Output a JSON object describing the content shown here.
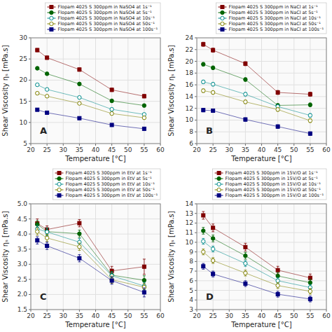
{
  "chart_data": [
    {
      "type": "line",
      "xlabel": "Temperature [°C]",
      "ylabel": "Shear Viscosity ηₛ [mPa.s]",
      "annotations": [
        "A"
      ],
      "x": [
        22,
        25,
        35,
        45,
        55
      ],
      "xlim": [
        20,
        60
      ],
      "xticks": [
        20,
        25,
        30,
        35,
        40,
        45,
        50,
        55,
        60
      ],
      "ylim": [
        5,
        30
      ],
      "yticks": [
        5,
        10,
        15,
        20,
        25,
        30
      ],
      "grid": true,
      "legend": "top",
      "series": [
        {
          "name": "Flopam 4025 S 300ppm in NaSO4 at 1s⁻¹",
          "color": "#800000",
          "marker": "square",
          "values": [
            27.1,
            25.3,
            22.5,
            17.7,
            16.2
          ],
          "errors": [
            0.4,
            0.4,
            0.4,
            0.4,
            0.4
          ]
        },
        {
          "name": "Flopam 4025 S 300ppm in NaSO4 at 5s⁻¹",
          "color": "#006400",
          "marker": "circle",
          "values": [
            22.8,
            21.5,
            19.1,
            15.1,
            14.0
          ],
          "errors": [
            0.35,
            0.35,
            0.35,
            0.35,
            0.35
          ]
        },
        {
          "name": "Flopam 4025 S 300ppm in NaSO4 at 10s⁻¹",
          "color": "#008B8B",
          "marker": "open-circle",
          "values": [
            18.9,
            17.8,
            15.9,
            13.1,
            11.9
          ],
          "errors": [
            0.3,
            0.3,
            0.3,
            0.3,
            0.3
          ]
        },
        {
          "name": "Flopam 4025 S 300ppm in NaSO4 at 50s⁻¹",
          "color": "#808000",
          "marker": "open-circle",
          "values": [
            16.9,
            16.2,
            14.5,
            12.1,
            11.1
          ],
          "errors": [
            0.3,
            0.3,
            0.3,
            0.3,
            0.3
          ]
        },
        {
          "name": "Flopam 4025 S 300ppm in NaSO4 at 100s⁻¹",
          "color": "#000080",
          "marker": "square",
          "values": [
            13.0,
            12.3,
            11.0,
            9.4,
            8.5
          ],
          "errors": [
            0.3,
            0.3,
            0.3,
            0.3,
            0.3
          ]
        }
      ]
    },
    {
      "type": "line",
      "xlabel": "Temperature [°C]",
      "ylabel": "Shear Viscosity ηₛ [mPa.s]",
      "annotations": [
        "B"
      ],
      "x": [
        22,
        25,
        35,
        45,
        55
      ],
      "xlim": [
        20,
        60
      ],
      "xticks": [
        20,
        25,
        30,
        35,
        40,
        45,
        50,
        55,
        60
      ],
      "ylim": [
        6,
        24
      ],
      "yticks": [
        6,
        8,
        10,
        12,
        14,
        16,
        18,
        20,
        22,
        24
      ],
      "grid": true,
      "legend": "top",
      "series": [
        {
          "name": "Flopam 4025 S 300ppm in NaCl at 1s⁻¹",
          "color": "#800000",
          "marker": "square",
          "values": [
            22.9,
            21.9,
            19.6,
            14.7,
            14.4
          ],
          "errors": [
            0.35,
            0.35,
            0.35,
            0.35,
            0.35
          ]
        },
        {
          "name": "Flopam 4025 S 300ppm in NaCl at 5s⁻¹",
          "color": "#006400",
          "marker": "circle",
          "values": [
            19.5,
            18.9,
            16.9,
            12.5,
            12.6
          ],
          "errors": [
            0.3,
            0.3,
            0.3,
            0.3,
            0.3
          ]
        },
        {
          "name": "Flopam 4025 S 300ppm in NaCl at 10s⁻¹",
          "color": "#008B8B",
          "marker": "open-circle",
          "values": [
            16.5,
            16.1,
            14.4,
            12.3,
            10.8
          ],
          "errors": [
            0.3,
            0.3,
            0.3,
            0.3,
            0.3
          ]
        },
        {
          "name": "Flopam 4025 S 300ppm in NaCl at 50s⁻¹",
          "color": "#808000",
          "marker": "open-circle",
          "values": [
            15.0,
            14.7,
            13.1,
            11.8,
            9.9
          ],
          "errors": [
            0.3,
            0.3,
            0.3,
            0.3,
            0.3
          ]
        },
        {
          "name": "Flopam 4025 S 300ppm in NaCl at 100s⁻¹",
          "color": "#000080",
          "marker": "square",
          "values": [
            11.7,
            11.6,
            10.1,
            8.9,
            7.7
          ],
          "errors": [
            0.3,
            0.3,
            0.3,
            0.3,
            0.3
          ]
        }
      ]
    },
    {
      "type": "line",
      "xlabel": "Temperature [°C]",
      "ylabel": "Shear Viscosity ηₛ [mPa.s]",
      "annotations": [
        "C"
      ],
      "x": [
        22,
        25,
        35,
        45,
        55
      ],
      "xlim": [
        20,
        60
      ],
      "xticks": [
        20,
        25,
        30,
        35,
        40,
        45,
        50,
        55,
        60
      ],
      "ylim": [
        1.5,
        5.0
      ],
      "yticks": [
        1.5,
        {
          "value": 2.0,
          "label": "2.0"
        },
        2.5,
        {
          "value": 3.0,
          "label": "3.0"
        },
        3.5,
        {
          "value": 4.0,
          "label": "4.0"
        },
        4.5,
        {
          "value": 5.0,
          "label": "5.0"
        }
      ],
      "grid": true,
      "legend": "top",
      "series": [
        {
          "name": "Flopam 4025 S 300ppm in EtV at 1s⁻¹",
          "color": "#800000",
          "marker": "square",
          "values": [
            4.35,
            4.15,
            4.36,
            2.78,
            2.92
          ],
          "errors": [
            0.15,
            0.12,
            0.12,
            0.15,
            0.25
          ]
        },
        {
          "name": "Flopam 4025 S 300ppm in EtV at 5s⁻¹",
          "color": "#006400",
          "marker": "circle",
          "values": [
            4.32,
            4.08,
            4.01,
            2.64,
            2.47
          ],
          "errors": [
            0.12,
            0.12,
            0.12,
            0.12,
            0.15
          ]
        },
        {
          "name": "Flopam 4025 S 300ppm in EtV at 10s⁻¹",
          "color": "#008B8B",
          "marker": "open-circle",
          "values": [
            4.17,
            4.07,
            3.73,
            2.62,
            2.28
          ],
          "errors": [
            0.12,
            0.12,
            0.12,
            0.12,
            0.12
          ]
        },
        {
          "name": "Flopam 4025 S 300ppm in EtV at 50s⁻¹",
          "color": "#808000",
          "marker": "open-circle",
          "values": [
            4.08,
            3.87,
            3.58,
            2.49,
            2.24
          ],
          "errors": [
            0.12,
            0.12,
            0.12,
            0.12,
            0.12
          ]
        },
        {
          "name": "Flopam 4025 S 300ppm in EtV at 100s⁻¹",
          "color": "#000080",
          "marker": "square",
          "values": [
            3.79,
            3.61,
            3.2,
            2.46,
            2.07
          ],
          "errors": [
            0.12,
            0.12,
            0.12,
            0.12,
            0.15
          ]
        }
      ]
    },
    {
      "type": "line",
      "xlabel": "Temperature [°C]",
      "ylabel": "Shear Viscosity ηₛ [mPa.s]",
      "annotations": [
        "D"
      ],
      "x": [
        22,
        25,
        35,
        45,
        55
      ],
      "xlim": [
        20,
        60
      ],
      "xticks": [
        20,
        25,
        30,
        35,
        40,
        45,
        50,
        55,
        60
      ],
      "ylim": [
        3,
        14
      ],
      "yticks": [
        3,
        4,
        5,
        6,
        7,
        8,
        9,
        10,
        11,
        12,
        13,
        14
      ],
      "grid": true,
      "legend": "top",
      "series": [
        {
          "name": "Flopam 4025 S 300ppm in 15V/O at 1s⁻¹",
          "color": "#800000",
          "marker": "square",
          "values": [
            12.8,
            11.5,
            9.5,
            7.1,
            6.3
          ],
          "errors": [
            0.4,
            0.4,
            0.4,
            0.4,
            0.4
          ]
        },
        {
          "name": "Flopam 4025 S 300ppm in 15V/O at 5s⁻¹",
          "color": "#006400",
          "marker": "circle",
          "values": [
            11.2,
            10.4,
            8.6,
            6.5,
            5.8
          ],
          "errors": [
            0.35,
            0.35,
            0.35,
            0.35,
            0.35
          ]
        },
        {
          "name": "Flopam 4025 S 300ppm in 15V/O at 10s⁻¹",
          "color": "#008B8B",
          "marker": "open-circle",
          "values": [
            10.1,
            9.3,
            7.8,
            6.0,
            5.3
          ],
          "errors": [
            0.3,
            0.3,
            0.3,
            0.3,
            0.3
          ]
        },
        {
          "name": "Flopam 4025 S 300ppm in 15V/O at 50s⁻¹",
          "color": "#808000",
          "marker": "open-circle",
          "values": [
            9.0,
            8.1,
            6.8,
            5.5,
            4.9
          ],
          "errors": [
            0.3,
            0.3,
            0.3,
            0.3,
            0.3
          ]
        },
        {
          "name": "Flopam 4025 S 300ppm in 15V/O at 100s⁻¹",
          "color": "#000080",
          "marker": "square",
          "values": [
            7.5,
            6.7,
            5.7,
            4.6,
            4.1
          ],
          "errors": [
            0.3,
            0.3,
            0.3,
            0.3,
            0.3
          ]
        }
      ]
    }
  ]
}
